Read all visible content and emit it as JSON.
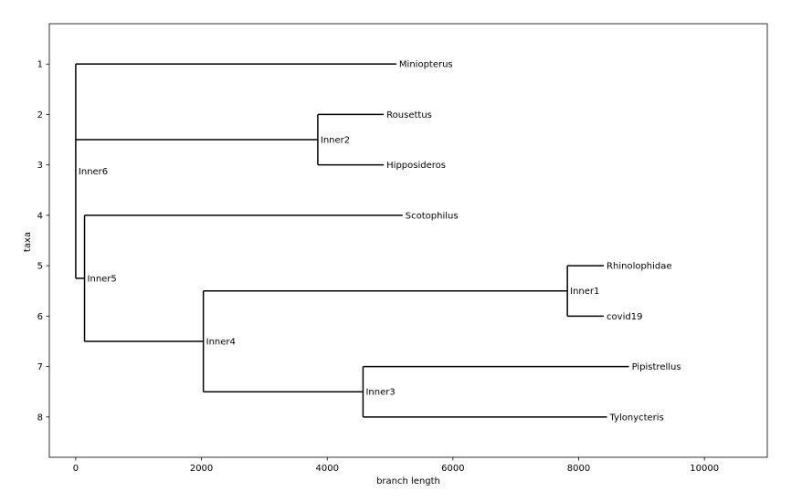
{
  "chart_data": {
    "type": "dendrogram",
    "title": "",
    "xlabel": "branch length",
    "ylabel": "taxa",
    "xlim": [
      -420,
      11000
    ],
    "ylim": [
      8.8,
      0.2
    ],
    "x_ticks": [
      0,
      2000,
      4000,
      6000,
      8000,
      10000
    ],
    "y_ticks": [
      1,
      2,
      3,
      4,
      5,
      6,
      7,
      8
    ],
    "grid": false,
    "legend": "none",
    "line_color": "#000000",
    "tips": [
      {
        "name": "Miniopterus",
        "x": 5100,
        "y": 1
      },
      {
        "name": "Rousettus",
        "x": 4900,
        "y": 2
      },
      {
        "name": "Hipposideros",
        "x": 4900,
        "y": 3
      },
      {
        "name": "Scotophilus",
        "x": 5200,
        "y": 4
      },
      {
        "name": "Rhinolophidae",
        "x": 8400,
        "y": 5
      },
      {
        "name": "covid19",
        "x": 8400,
        "y": 6
      },
      {
        "name": "Pipistrellus",
        "x": 8800,
        "y": 7
      },
      {
        "name": "Tylonycteris",
        "x": 8450,
        "y": 8
      }
    ],
    "nodes": [
      {
        "name": "Inner6",
        "x": 0,
        "y": 3.125,
        "y_min": 1,
        "y_max": 5.25
      },
      {
        "name": "Inner2",
        "x": 3850,
        "y": 2.5,
        "y_min": 2,
        "y_max": 3
      },
      {
        "name": "Inner5",
        "x": 140,
        "y": 5.25,
        "y_min": 4,
        "y_max": 6.5
      },
      {
        "name": "Inner4",
        "x": 2030,
        "y": 6.5,
        "y_min": 5.5,
        "y_max": 7.5
      },
      {
        "name": "Inner1",
        "x": 7820,
        "y": 5.5,
        "y_min": 5,
        "y_max": 6
      },
      {
        "name": "Inner3",
        "x": 4570,
        "y": 7.5,
        "y_min": 7,
        "y_max": 8
      }
    ],
    "branches": [
      {
        "from_x": 0,
        "to_x": 5100,
        "y": 1
      },
      {
        "from_x": 0,
        "to_x": 3850,
        "y": 2.5
      },
      {
        "from_x": 0,
        "to_x": 140,
        "y": 5.25
      },
      {
        "from_x": 3850,
        "to_x": 4900,
        "y": 2
      },
      {
        "from_x": 3850,
        "to_x": 4900,
        "y": 3
      },
      {
        "from_x": 140,
        "to_x": 5200,
        "y": 4
      },
      {
        "from_x": 140,
        "to_x": 2030,
        "y": 6.5
      },
      {
        "from_x": 2030,
        "to_x": 7820,
        "y": 5.5
      },
      {
        "from_x": 2030,
        "to_x": 4570,
        "y": 7.5
      },
      {
        "from_x": 7820,
        "to_x": 8400,
        "y": 5
      },
      {
        "from_x": 7820,
        "to_x": 8400,
        "y": 6
      },
      {
        "from_x": 4570,
        "to_x": 8800,
        "y": 7
      },
      {
        "from_x": 4570,
        "to_x": 8450,
        "y": 8
      }
    ]
  }
}
